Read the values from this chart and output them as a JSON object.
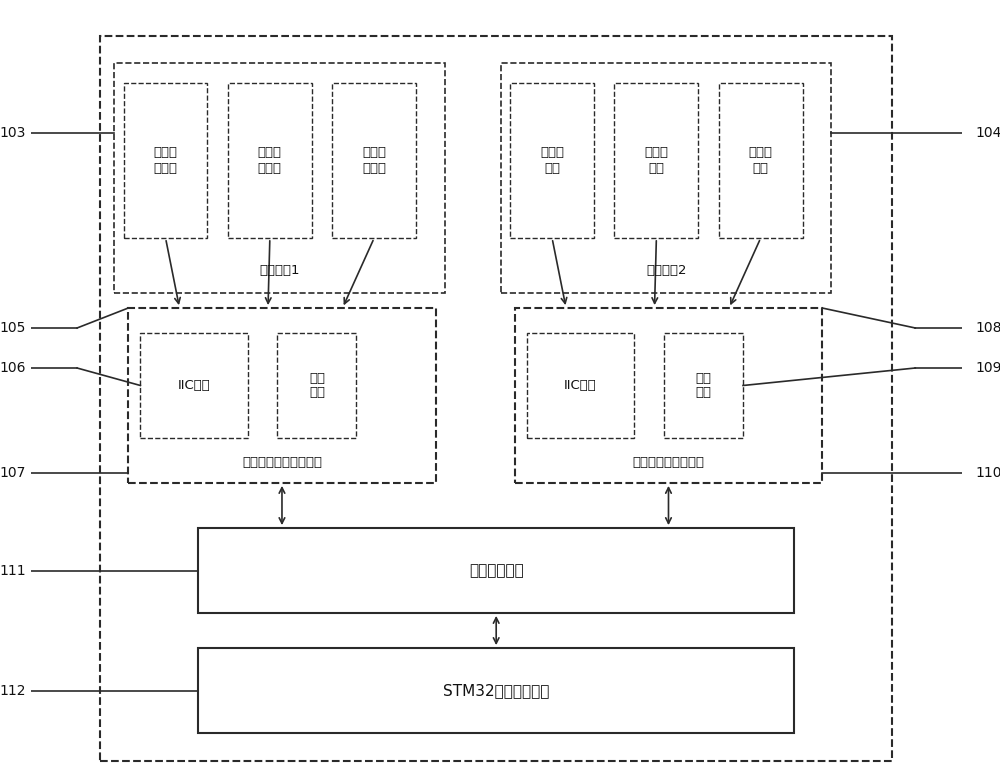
{
  "bg_color": "#ffffff",
  "line_color": "#2a2a2a",
  "font_size_sensor": 9.5,
  "font_size_label": 9.5,
  "font_size_box": 10.5,
  "font_size_num": 10,
  "sensor1_texts": [
    "温湿度\n传感器",
    "温湿度\n传感器",
    "温湿度\n传感器"
  ],
  "sensor2_texts": [
    "光照传\n感器",
    "光照传\n感器",
    "光照传\n感器"
  ],
  "group1_label": "传感器组1",
  "group2_label": "传感器组2",
  "iic_text": "IIC接口",
  "drive_text": "驱动\n程序",
  "temp_driver_label": "温湿度传感器驱动模块",
  "light_driver_label": "光照传感器驱动模块",
  "data_proc_label": "数据处理模块",
  "stm32_label": "STM32微控制器模块",
  "left_labels": [
    "103",
    "105",
    "106",
    "107",
    "111",
    "112"
  ],
  "right_labels": [
    "104",
    "108",
    "109",
    "110"
  ]
}
